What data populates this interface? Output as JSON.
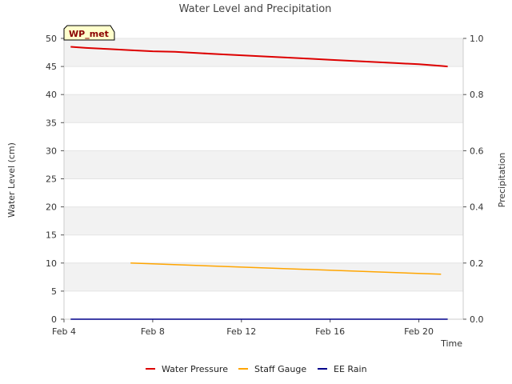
{
  "chart_data": {
    "type": "line",
    "title": "Water Level and Precipitation",
    "xlabel": "Time",
    "ylabel": "Water Level (cm)",
    "y2label": "Precipitation",
    "badge": "WP_met",
    "x_ticks": [
      "Feb 4",
      "Feb 8",
      "Feb 12",
      "Feb 16",
      "Feb 20"
    ],
    "x_tick_days": [
      4,
      8,
      12,
      16,
      20
    ],
    "xlim": [
      4,
      22
    ],
    "ylim": [
      0,
      50
    ],
    "y_ticks": [
      "0",
      "5",
      "10",
      "15",
      "20",
      "25",
      "30",
      "35",
      "40",
      "45",
      "50"
    ],
    "y2lim": [
      0,
      1
    ],
    "y2_ticks": [
      "0.0",
      "0.2",
      "0.4",
      "0.6",
      "0.8",
      "1.0"
    ],
    "grid": "horizontal bands",
    "legend_position": "bottom",
    "series": [
      {
        "name": "Water Pressure",
        "color": "#dd0000",
        "axis": "left",
        "x": [
          4.3,
          5,
          6,
          7,
          8,
          9,
          10,
          11,
          12,
          13,
          14,
          15,
          16,
          17,
          18,
          19,
          20,
          21,
          21.3
        ],
        "values": [
          48.5,
          48.3,
          48.1,
          47.9,
          47.7,
          47.6,
          47.4,
          47.2,
          47.0,
          46.8,
          46.6,
          46.4,
          46.2,
          46.0,
          45.8,
          45.6,
          45.4,
          45.1,
          45.0
        ]
      },
      {
        "name": "Staff Gauge",
        "color": "#ffa500",
        "axis": "left",
        "x": [
          7,
          21
        ],
        "values": [
          10,
          8
        ]
      },
      {
        "name": "EE Rain",
        "color": "#00008b",
        "axis": "right",
        "x": [
          4.3,
          21.3
        ],
        "values": [
          0,
          0
        ]
      }
    ]
  }
}
